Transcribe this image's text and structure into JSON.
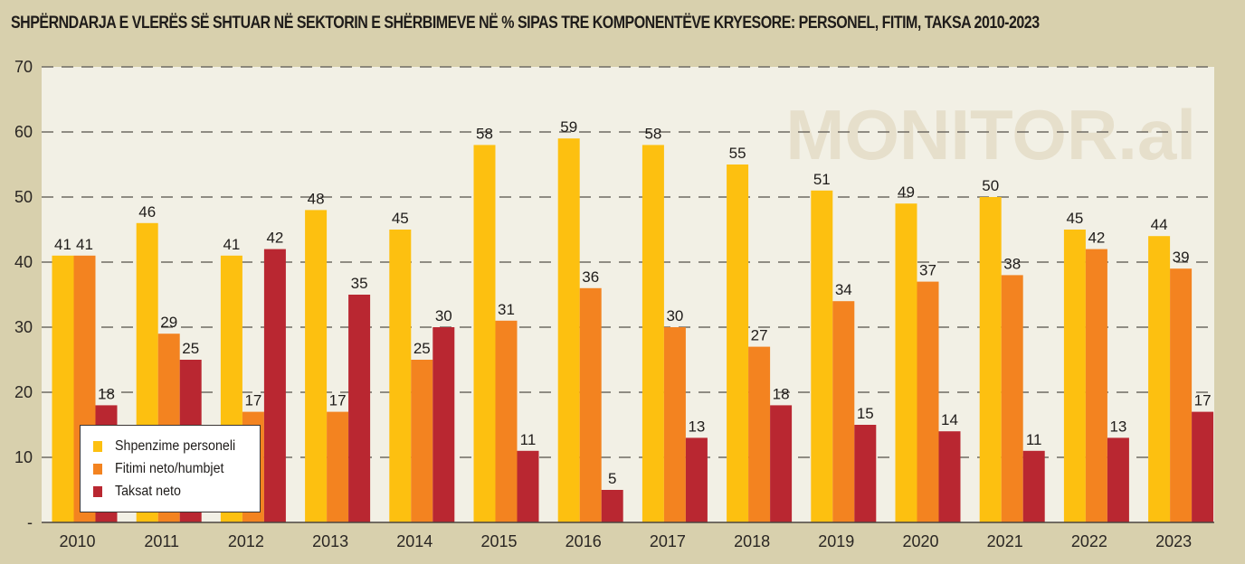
{
  "chart_data": {
    "type": "bar",
    "title": "SHPËRNDARJA E VLERËS SË SHTUAR NË SEKTORIN E SHËRBIMEVE NË %  SIPAS TRE KOMPONENTËVE KRYESORE: PERSONEL, FITIM, TAKSA 2010-2023",
    "watermark": "MONITOR.al",
    "xlabel": "",
    "ylabel": "",
    "ylim": [
      0,
      70
    ],
    "yticks": [
      0,
      10,
      20,
      30,
      40,
      50,
      60,
      70
    ],
    "ytick_labels": [
      "-",
      "10",
      "20",
      "30",
      "40",
      "50",
      "60",
      "70"
    ],
    "grid": true,
    "legend_position": "bottom-left",
    "categories": [
      "2010",
      "2011",
      "2012",
      "2013",
      "2014",
      "2015",
      "2016",
      "2017",
      "2018",
      "2019",
      "2020",
      "2021",
      "2022",
      "2023"
    ],
    "series": [
      {
        "name": "Shpenzime personeli",
        "color": "#fdc010",
        "values": [
          41,
          46,
          41,
          48,
          45,
          58,
          59,
          58,
          55,
          51,
          49,
          50,
          45,
          44
        ]
      },
      {
        "name": "Fitimi neto/humbjet",
        "color": "#f38320",
        "values": [
          41,
          29,
          17,
          17,
          25,
          31,
          36,
          30,
          27,
          34,
          37,
          38,
          42,
          39
        ]
      },
      {
        "name": "Taksat neto",
        "color": "#b92731",
        "values": [
          18,
          25,
          42,
          35,
          30,
          11,
          5,
          13,
          18,
          15,
          14,
          11,
          13,
          17
        ]
      }
    ]
  }
}
